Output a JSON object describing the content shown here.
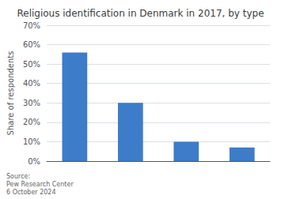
{
  "chart_data": {
    "type": "bar",
    "title": "Religious identification in Denmark in 2017, by type",
    "categories": [
      null,
      null,
      null,
      null
    ],
    "values": [
      56,
      30,
      10,
      7
    ],
    "color": "#3d7cc9",
    "ylabel": "Share of respondents",
    "ylim": [
      0,
      70
    ],
    "yticks": [
      {
        "value": 0,
        "label": "0%"
      },
      {
        "value": 10,
        "label": "10%"
      },
      {
        "value": 20,
        "label": "20%"
      },
      {
        "value": 30,
        "label": "30%"
      },
      {
        "value": 40,
        "label": "40%"
      },
      {
        "value": 50,
        "label": "50%"
      },
      {
        "value": 60,
        "label": "60%"
      },
      {
        "value": 70,
        "label": "70%"
      }
    ],
    "annotation": "Source:\nPew Research Center\n6 October 2024",
    "grid": true
  }
}
